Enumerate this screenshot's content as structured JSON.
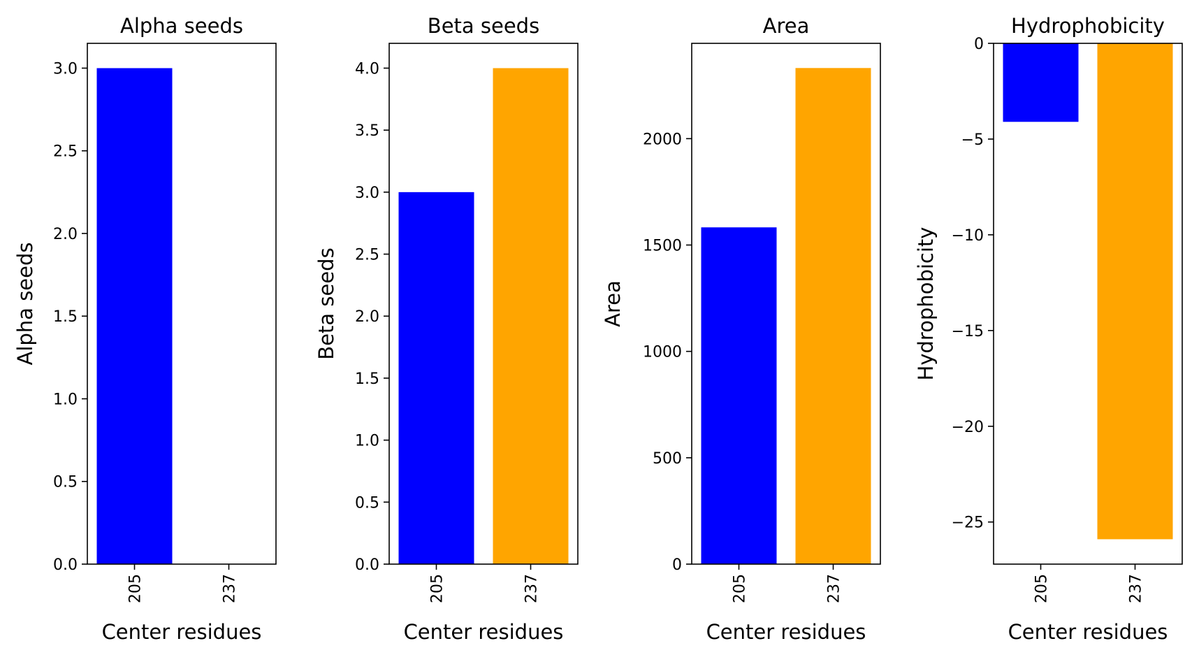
{
  "chart_data": [
    {
      "type": "bar",
      "title": "Alpha seeds",
      "xlabel": "Center residues",
      "ylabel": "Alpha seeds",
      "categories": [
        "205",
        "237"
      ],
      "values": [
        3.0,
        0.0
      ],
      "colors": [
        "#0000ff",
        "#ffa500"
      ],
      "ylim": [
        0,
        3.15
      ],
      "yticks": [
        0.0,
        0.5,
        1.0,
        1.5,
        2.0,
        2.5,
        3.0
      ],
      "yticklabels": [
        "0.0",
        "0.5",
        "1.0",
        "1.5",
        "2.0",
        "2.5",
        "3.0"
      ],
      "grid": false
    },
    {
      "type": "bar",
      "title": "Beta seeds",
      "xlabel": "Center residues",
      "ylabel": "Beta seeds",
      "categories": [
        "205",
        "237"
      ],
      "values": [
        3.0,
        4.0
      ],
      "colors": [
        "#0000ff",
        "#ffa500"
      ],
      "ylim": [
        0,
        4.2
      ],
      "yticks": [
        0.0,
        0.5,
        1.0,
        1.5,
        2.0,
        2.5,
        3.0,
        3.5,
        4.0
      ],
      "yticklabels": [
        "0.0",
        "0.5",
        "1.0",
        "1.5",
        "2.0",
        "2.5",
        "3.0",
        "3.5",
        "4.0"
      ],
      "grid": false
    },
    {
      "type": "bar",
      "title": "Area",
      "xlabel": "Center residues",
      "ylabel": "Area",
      "categories": [
        "205",
        "237"
      ],
      "values": [
        1583,
        2332
      ],
      "colors": [
        "#0000ff",
        "#ffa500"
      ],
      "ylim": [
        0,
        2448
      ],
      "yticks": [
        0,
        500,
        1000,
        1500,
        2000
      ],
      "yticklabels": [
        "0",
        "500",
        "1000",
        "1500",
        "2000"
      ],
      "grid": false
    },
    {
      "type": "bar",
      "title": "Hydrophobicity",
      "xlabel": "Center residues",
      "ylabel": "Hydrophobicity",
      "categories": [
        "205",
        "237"
      ],
      "values": [
        -4.1,
        -25.9
      ],
      "colors": [
        "#0000ff",
        "#ffa500"
      ],
      "ylim": [
        -27.2,
        0
      ],
      "yticks": [
        0,
        -5,
        -10,
        -15,
        -20,
        -25
      ],
      "yticklabels": [
        "0",
        "−5",
        "−10",
        "−15",
        "−20",
        "−25"
      ],
      "grid": false
    }
  ]
}
